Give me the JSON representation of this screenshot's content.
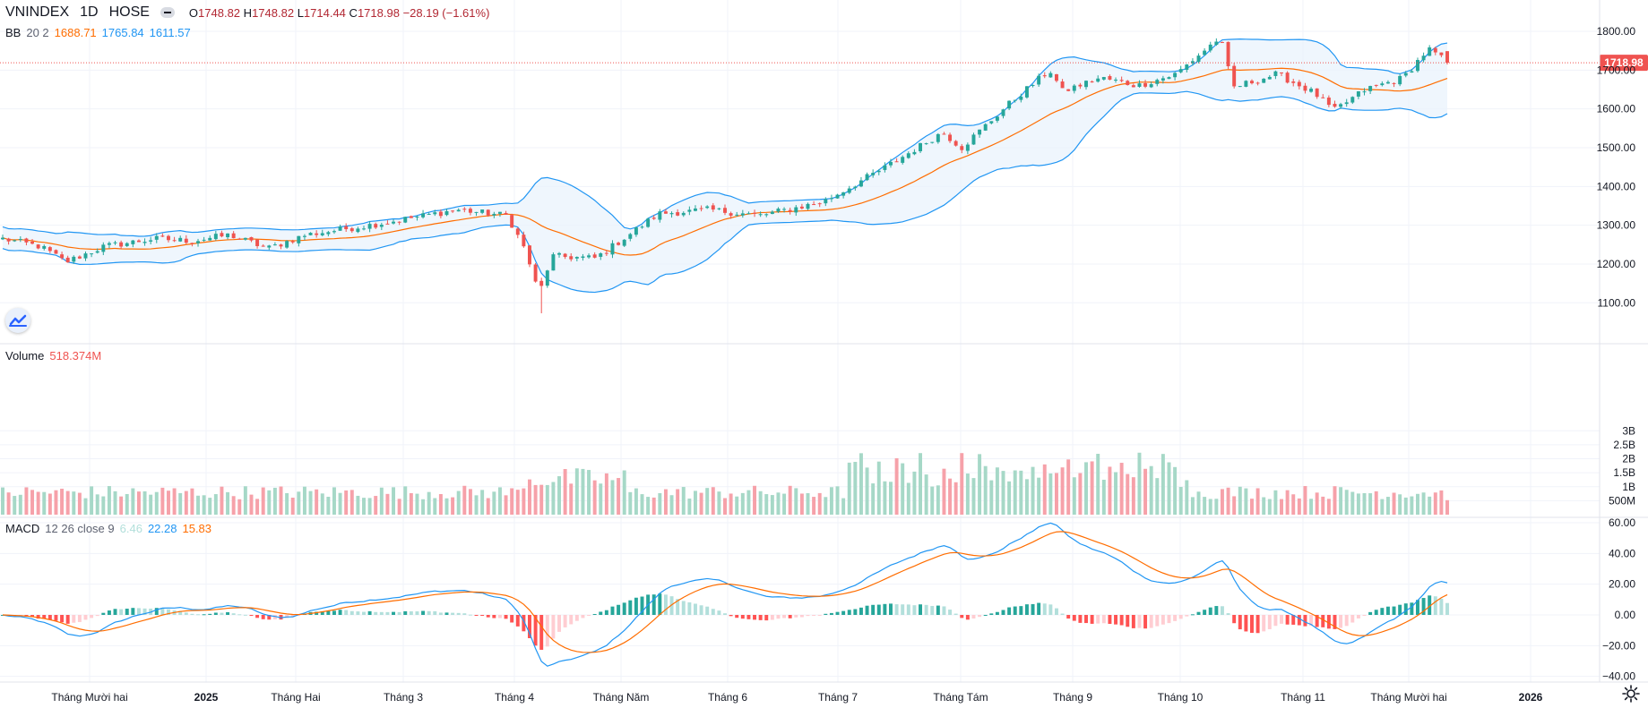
{
  "header": {
    "symbol": "VNINDEX",
    "interval": "1D",
    "exchange": "HOSE",
    "open_label": "O",
    "open": "1748.82",
    "high_label": "H",
    "high": "1748.82",
    "low_label": "L",
    "low": "1714.44",
    "close_label": "C",
    "close": "1718.98",
    "change": "−28.19 (−1.61%)"
  },
  "bb_legend": {
    "name": "BB",
    "params": "20 2",
    "basis": "1688.71",
    "upper": "1765.84",
    "lower": "1611.57"
  },
  "volume_legend": {
    "name": "Volume",
    "value": "518.374M"
  },
  "macd_legend": {
    "name": "MACD",
    "params": "12 26 close 9",
    "hist": "6.46",
    "macd": "22.28",
    "signal": "15.83"
  },
  "colors": {
    "up": "#26a69a",
    "down": "#ef5350",
    "up_vol": "#a6d8c7",
    "down_vol": "#f6a1a9",
    "bb_band": "#2196f3",
    "bb_basis": "#ff6d00",
    "bb_fill": "#e8f2fc",
    "macd_line": "#2196f3",
    "signal_line": "#ff6d00",
    "hist_up_strong": "#26a69a",
    "hist_up_weak": "#b2dfdb",
    "hist_down_strong": "#ff5252",
    "hist_down_weak": "#ffcdd2",
    "last_price_badge": "#ef5350"
  },
  "price_axis": {
    "ticks": [
      "1800.00",
      "1700.00",
      "1600.00",
      "1500.00",
      "1400.00",
      "1300.00",
      "1200.00",
      "1100.00"
    ],
    "last_price_label": "1718.98"
  },
  "volume_axis": {
    "ticks": [
      "3B",
      "2.5B",
      "2B",
      "1.5B",
      "1B",
      "500M"
    ]
  },
  "macd_axis": {
    "ticks": [
      "60.00",
      "40.00",
      "20.00",
      "0.00",
      "−20.00",
      "−40.00"
    ]
  },
  "time_axis": {
    "labels": [
      "Tháng Mười hai",
      "2025",
      "Tháng Hai",
      "Tháng 3",
      "Tháng 4",
      "Tháng Năm",
      "Tháng 6",
      "Tháng 7",
      "Tháng Tám",
      "Tháng 9",
      "Tháng 10",
      "Tháng 11",
      "Tháng Mười hai",
      "2026"
    ]
  },
  "icons": {
    "logo": "tradingview-logo-icon",
    "settings": "gear-icon",
    "collapse": "collapse-legend-icon"
  },
  "chart_data": {
    "type": "candlestick",
    "title": "VNINDEX 1D HOSE",
    "ylim": [
      1050,
      1830
    ],
    "price_anchors": [
      {
        "x": 0.0,
        "y": 1265
      },
      {
        "x": 0.03,
        "y": 1245
      },
      {
        "x": 0.05,
        "y": 1205
      },
      {
        "x": 0.08,
        "y": 1245
      },
      {
        "x": 0.12,
        "y": 1265
      },
      {
        "x": 0.15,
        "y": 1260
      },
      {
        "x": 0.18,
        "y": 1275
      },
      {
        "x": 0.21,
        "y": 1240
      },
      {
        "x": 0.24,
        "y": 1275
      },
      {
        "x": 0.3,
        "y": 1305
      },
      {
        "x": 0.36,
        "y": 1340
      },
      {
        "x": 0.4,
        "y": 1325
      },
      {
        "x": 0.415,
        "y": 1230
      },
      {
        "x": 0.425,
        "y": 1120
      },
      {
        "x": 0.435,
        "y": 1220
      },
      {
        "x": 0.47,
        "y": 1215
      },
      {
        "x": 0.52,
        "y": 1330
      },
      {
        "x": 0.56,
        "y": 1340
      },
      {
        "x": 0.6,
        "y": 1325
      },
      {
        "x": 0.65,
        "y": 1360
      },
      {
        "x": 0.7,
        "y": 1450
      },
      {
        "x": 0.745,
        "y": 1540
      },
      {
        "x": 0.76,
        "y": 1500
      },
      {
        "x": 0.8,
        "y": 1620
      },
      {
        "x": 0.83,
        "y": 1700
      },
      {
        "x": 0.84,
        "y": 1645
      },
      {
        "x": 0.87,
        "y": 1680
      },
      {
        "x": 0.9,
        "y": 1660
      },
      {
        "x": 0.93,
        "y": 1690
      },
      {
        "x": 0.965,
        "y": 1785
      },
      {
        "x": 0.975,
        "y": 1655
      },
      {
        "x": 1.01,
        "y": 1690
      },
      {
        "x": 1.04,
        "y": 1640
      },
      {
        "x": 1.055,
        "y": 1595
      },
      {
        "x": 1.08,
        "y": 1650
      },
      {
        "x": 1.11,
        "y": 1680
      },
      {
        "x": 1.13,
        "y": 1755
      },
      {
        "x": 1.145,
        "y": 1719
      }
    ],
    "volume_ylim": [
      0,
      3000000000
    ],
    "macd_ylim": [
      -45,
      62
    ],
    "series": [
      {
        "name": "Volume",
        "last": 518374000
      },
      {
        "name": "MACD",
        "last": 22.28
      },
      {
        "name": "Signal",
        "last": 15.83
      },
      {
        "name": "Histogram",
        "last": 6.46
      },
      {
        "name": "BB basis",
        "last": 1688.71
      },
      {
        "name": "BB upper",
        "last": 1765.84
      },
      {
        "name": "BB lower",
        "last": 1611.57
      }
    ],
    "last": {
      "open": 1748.82,
      "high": 1748.82,
      "low": 1714.44,
      "close": 1718.98
    }
  }
}
